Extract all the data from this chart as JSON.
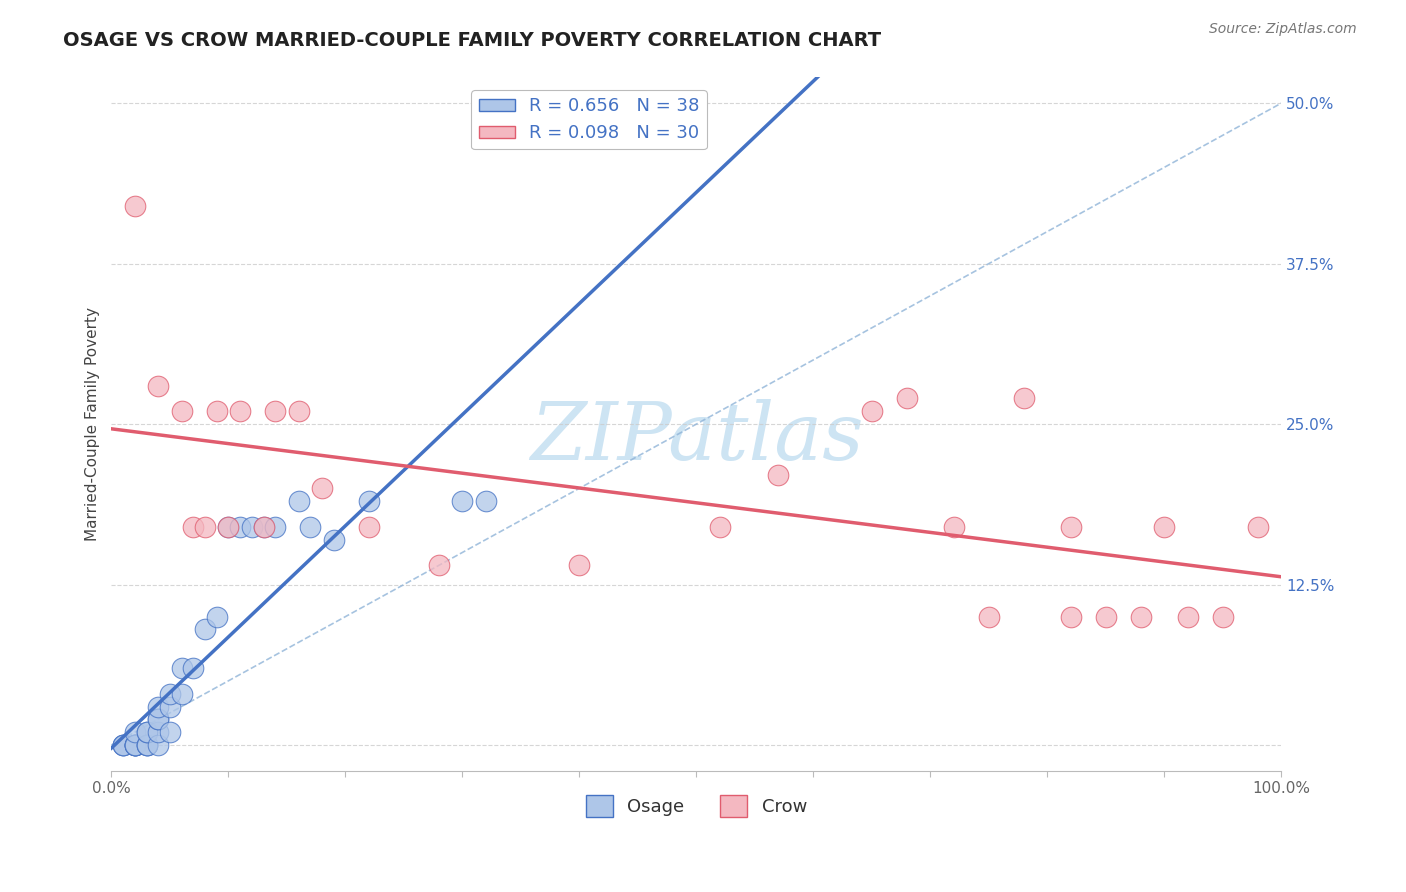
{
  "title": "OSAGE VS CROW MARRIED-COUPLE FAMILY POVERTY CORRELATION CHART",
  "source": "Source: ZipAtlas.com",
  "ylabel": "Married-Couple Family Poverty",
  "xlim": [
    0.0,
    1.0
  ],
  "ylim": [
    -0.02,
    0.52
  ],
  "background_color": "#ffffff",
  "osage_color": "#aec6e8",
  "crow_color": "#f4b8c1",
  "osage_line_color": "#4472c4",
  "crow_line_color": "#e05c6e",
  "diag_line_color": "#90b4d8",
  "legend_label_osage": "R = 0.656   N = 38",
  "legend_label_crow": "R = 0.098   N = 30",
  "watermark": "ZIPatlas",
  "watermark_color": "#cde4f3",
  "grid_color": "#cccccc",
  "title_fontsize": 14,
  "axis_label_fontsize": 11,
  "tick_fontsize": 11,
  "legend_fontsize": 13,
  "source_fontsize": 10,
  "ytick_color": "#4472c4",
  "osage_x": [
    0.01,
    0.01,
    0.01,
    0.02,
    0.02,
    0.02,
    0.02,
    0.02,
    0.02,
    0.03,
    0.03,
    0.03,
    0.03,
    0.03,
    0.04,
    0.04,
    0.04,
    0.04,
    0.04,
    0.05,
    0.05,
    0.05,
    0.06,
    0.06,
    0.07,
    0.08,
    0.09,
    0.1,
    0.11,
    0.12,
    0.13,
    0.14,
    0.16,
    0.17,
    0.19,
    0.22,
    0.3,
    0.32
  ],
  "osage_y": [
    0.0,
    0.0,
    0.0,
    0.0,
    0.0,
    0.0,
    0.0,
    0.0,
    0.01,
    0.0,
    0.0,
    0.0,
    0.01,
    0.01,
    0.0,
    0.01,
    0.02,
    0.02,
    0.03,
    0.01,
    0.03,
    0.04,
    0.04,
    0.06,
    0.06,
    0.09,
    0.1,
    0.17,
    0.17,
    0.17,
    0.17,
    0.17,
    0.19,
    0.17,
    0.16,
    0.19,
    0.19,
    0.19
  ],
  "crow_x": [
    0.02,
    0.04,
    0.06,
    0.07,
    0.08,
    0.09,
    0.1,
    0.11,
    0.13,
    0.14,
    0.16,
    0.18,
    0.22,
    0.28,
    0.4,
    0.52,
    0.57,
    0.65,
    0.68,
    0.72,
    0.75,
    0.78,
    0.82,
    0.82,
    0.85,
    0.88,
    0.9,
    0.92,
    0.95,
    0.98
  ],
  "crow_y": [
    0.42,
    0.28,
    0.26,
    0.17,
    0.17,
    0.26,
    0.17,
    0.26,
    0.17,
    0.26,
    0.26,
    0.2,
    0.17,
    0.14,
    0.14,
    0.17,
    0.21,
    0.26,
    0.27,
    0.17,
    0.1,
    0.27,
    0.17,
    0.1,
    0.1,
    0.1,
    0.17,
    0.1,
    0.1,
    0.17
  ]
}
